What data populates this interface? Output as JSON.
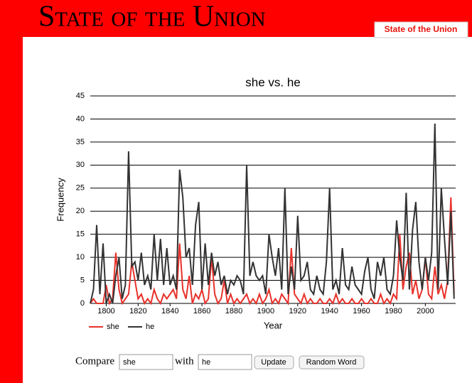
{
  "header": {
    "title": "State of the Union",
    "tab": "State of the Union"
  },
  "chart_data": {
    "type": "line",
    "title": "she vs. he",
    "x_label": "Year",
    "y_label": "Frequency",
    "x": [
      1790,
      1792,
      1794,
      1796,
      1798,
      1800,
      1802,
      1804,
      1806,
      1808,
      1810,
      1812,
      1814,
      1816,
      1818,
      1820,
      1822,
      1824,
      1826,
      1828,
      1830,
      1832,
      1834,
      1836,
      1838,
      1840,
      1842,
      1844,
      1846,
      1848,
      1850,
      1852,
      1854,
      1856,
      1858,
      1860,
      1862,
      1864,
      1866,
      1868,
      1870,
      1872,
      1874,
      1876,
      1878,
      1880,
      1882,
      1884,
      1886,
      1888,
      1890,
      1892,
      1894,
      1896,
      1898,
      1900,
      1902,
      1904,
      1906,
      1908,
      1910,
      1912,
      1914,
      1916,
      1918,
      1920,
      1922,
      1924,
      1926,
      1928,
      1930,
      1932,
      1934,
      1936,
      1938,
      1940,
      1942,
      1944,
      1946,
      1948,
      1950,
      1952,
      1954,
      1956,
      1958,
      1960,
      1962,
      1964,
      1966,
      1968,
      1970,
      1972,
      1974,
      1976,
      1978,
      1980,
      1982,
      1984,
      1986,
      1988,
      1990,
      1992,
      1994,
      1996,
      1998,
      2000,
      2002,
      2004,
      2006,
      2008,
      2010,
      2012,
      2014,
      2016,
      2018
    ],
    "series": [
      {
        "name": "she",
        "color": "#e8322b",
        "values": [
          0,
          1,
          0,
          0,
          0,
          4,
          0,
          1,
          11,
          3,
          0,
          1,
          2,
          9,
          5,
          1,
          2,
          0,
          1,
          0,
          3,
          1,
          0,
          2,
          1,
          2,
          3,
          1,
          13,
          3,
          1,
          6,
          0,
          2,
          1,
          3,
          0,
          1,
          10,
          2,
          0,
          1,
          5,
          0,
          2,
          0,
          1,
          0,
          1,
          2,
          0,
          1,
          0,
          2,
          0,
          1,
          3,
          0,
          1,
          0,
          2,
          1,
          0,
          12,
          2,
          1,
          0,
          2,
          0,
          1,
          0,
          0,
          1,
          0,
          0,
          1,
          0,
          2,
          0,
          1,
          0,
          0,
          1,
          0,
          0,
          1,
          0,
          0,
          1,
          0,
          0,
          2,
          0,
          1,
          0,
          2,
          1,
          15,
          3,
          8,
          11,
          2,
          5,
          1,
          3,
          10,
          2,
          1,
          8,
          2,
          4,
          1,
          5,
          23,
          2
        ]
      },
      {
        "name": "he",
        "color": "#333333",
        "values": [
          0,
          3,
          17,
          2,
          13,
          0,
          2,
          0,
          6,
          10,
          1,
          4,
          33,
          8,
          9,
          5,
          11,
          4,
          6,
          3,
          15,
          5,
          14,
          4,
          12,
          4,
          6,
          3,
          29,
          23,
          10,
          12,
          4,
          17,
          22,
          3,
          13,
          4,
          11,
          6,
          9,
          4,
          6,
          2,
          5,
          4,
          6,
          5,
          2,
          30,
          6,
          9,
          6,
          5,
          6,
          2,
          15,
          10,
          6,
          12,
          3,
          25,
          2,
          8,
          3,
          19,
          5,
          6,
          9,
          3,
          2,
          6,
          3,
          2,
          9,
          25,
          3,
          5,
          2,
          12,
          4,
          3,
          8,
          4,
          3,
          2,
          7,
          10,
          3,
          1,
          9,
          6,
          10,
          3,
          2,
          6,
          18,
          10,
          5,
          24,
          3,
          16,
          22,
          9,
          3,
          10,
          5,
          11,
          39,
          3,
          25,
          14,
          4,
          20,
          1
        ]
      }
    ],
    "xlim": [
      1790,
      2019
    ],
    "xticks": [
      1800,
      1820,
      1840,
      1860,
      1880,
      1900,
      1920,
      1940,
      1960,
      1980,
      2000
    ],
    "ylim": [
      0,
      45
    ],
    "yticks": [
      0,
      5,
      10,
      15,
      20,
      25,
      30,
      35,
      40,
      45
    ],
    "grid": true,
    "legend": "bottom-left"
  },
  "form": {
    "compare": "Compare",
    "word1": "she",
    "with": "with",
    "word2": "he",
    "update": "Update",
    "random": "Random Word"
  }
}
